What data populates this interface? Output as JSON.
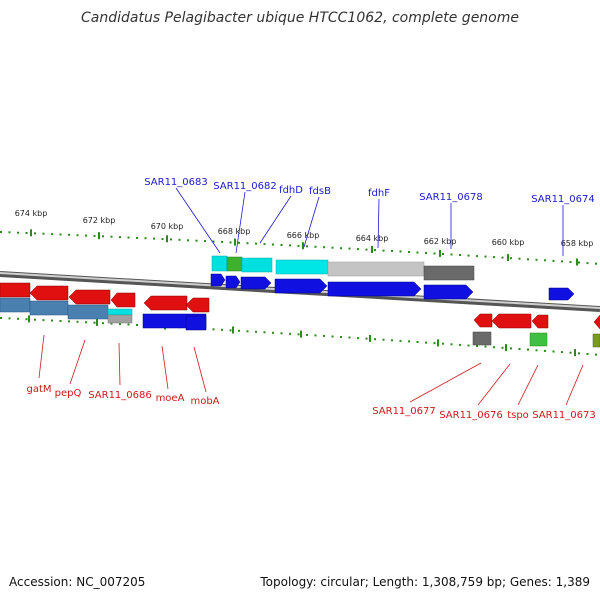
{
  "title": "Candidatus Pelagibacter ubique HTCC1062, complete genome",
  "footer": {
    "accession": "Accession: NC_007205",
    "summary": "Topology: circular; Length: 1,308,759 bp; Genes: 1,389"
  },
  "scale": {
    "ticks": [
      "674 kbp",
      "672 kbp",
      "670 kbp",
      "668 kbp",
      "666 kbp",
      "664 kbp",
      "662 kbp",
      "660 kbp",
      "658 kbp"
    ]
  },
  "gene_labels_top": [
    "SAR11_0683",
    "SAR11_0682",
    "fdhD",
    "fdsB",
    "fdhF",
    "SAR11_0678",
    "SAR11_0674"
  ],
  "gene_labels_bottom": [
    "gatM",
    "pepQ",
    "SAR11_0686",
    "moeA",
    "mobA",
    "SAR11_0677",
    "SAR11_0676",
    "tspo",
    "SAR11_0673"
  ],
  "colors": {
    "forward_gene": "#1010e0",
    "reverse_gene": "#e01010",
    "backbone": "#888888",
    "tick": "#2a8a1a",
    "cyan_feature": "#00e0e0",
    "grey_feature": "#c0c0c0",
    "dark_feature": "#6a6a6a",
    "green_feature": "#40c040",
    "steel_feature": "#4a80b0"
  }
}
